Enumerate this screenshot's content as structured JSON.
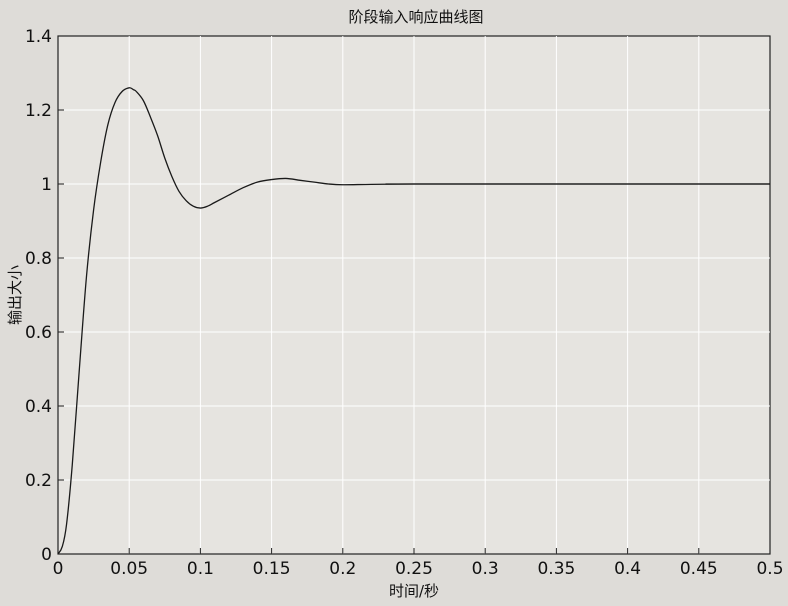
{
  "chart_data": {
    "type": "line",
    "title": "阶段输入响应曲线图",
    "xlabel": "时间/秒",
    "ylabel": "输出大小",
    "xlim": [
      0,
      0.5
    ],
    "ylim": [
      0,
      1.4
    ],
    "xticks": [
      0,
      0.05,
      0.1,
      0.15,
      0.2,
      0.25,
      0.3,
      0.35,
      0.4,
      0.45,
      0.5
    ],
    "xtick_labels": [
      "0",
      "0.05",
      "0.1",
      "0.15",
      "0.2",
      "0.25",
      "0.3",
      "0.35",
      "0.4",
      "0.45",
      "0.5"
    ],
    "yticks": [
      0,
      0.2,
      0.4,
      0.6,
      0.8,
      1,
      1.2,
      1.4
    ],
    "ytick_labels": [
      "0",
      "0.2",
      "0.4",
      "0.6",
      "0.8",
      "1",
      "1.2",
      "1.4"
    ],
    "grid": true,
    "series": [
      {
        "x": [
          0,
          0.003,
          0.006,
          0.01,
          0.015,
          0.02,
          0.025,
          0.03,
          0.035,
          0.04,
          0.045,
          0.05,
          0.053,
          0.055,
          0.06,
          0.065,
          0.07,
          0.075,
          0.08,
          0.085,
          0.09,
          0.095,
          0.1,
          0.105,
          0.11,
          0.12,
          0.13,
          0.14,
          0.15,
          0.16,
          0.17,
          0.18,
          0.19,
          0.2,
          0.22,
          0.25,
          0.3,
          0.35,
          0.4,
          0.45,
          0.5
        ],
        "y": [
          0,
          0.02,
          0.08,
          0.24,
          0.5,
          0.75,
          0.93,
          1.06,
          1.16,
          1.22,
          1.25,
          1.26,
          1.255,
          1.25,
          1.225,
          1.18,
          1.13,
          1.07,
          1.02,
          0.98,
          0.955,
          0.94,
          0.935,
          0.94,
          0.95,
          0.97,
          0.99,
          1.005,
          1.012,
          1.015,
          1.01,
          1.005,
          1.0,
          0.998,
          0.999,
          1.0,
          1.0,
          1.0,
          1.0,
          1.0,
          1.0
        ]
      },
      {
        "x": [
          0.23,
          0.5
        ],
        "y": [
          1.0,
          1.0
        ]
      }
    ]
  }
}
